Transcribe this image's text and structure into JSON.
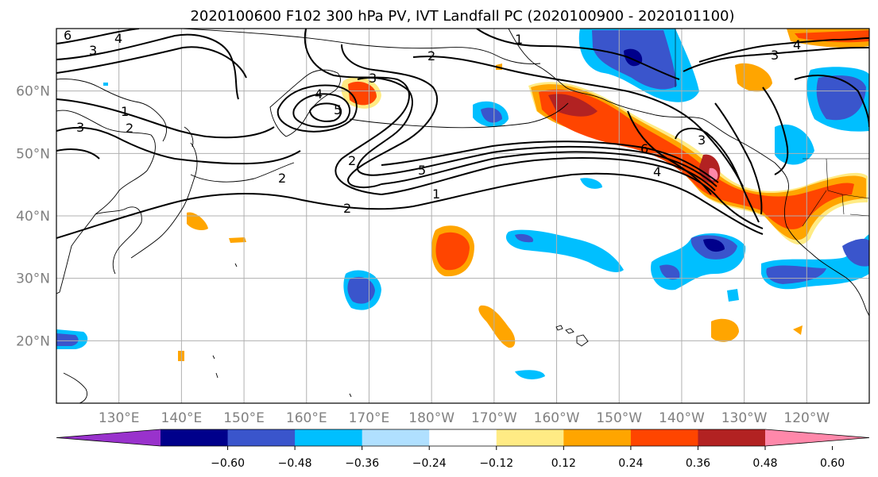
{
  "title": "2020100600 F102 300 hPa PV, IVT Landfall PC (2020100900 - 2020101100)",
  "map": {
    "lon_range": [
      120,
      -110
    ],
    "lat_range": [
      10,
      70
    ],
    "lat_labels": [
      "20°N",
      "30°N",
      "40°N",
      "50°N",
      "60°N"
    ],
    "lon_labels": [
      "130°E",
      "140°E",
      "150°E",
      "160°E",
      "170°E",
      "180°W",
      "170°W",
      "160°W",
      "150°W",
      "140°W",
      "130°W",
      "120°W"
    ],
    "gridlines": true
  },
  "colorbar": {
    "ticks": [
      "−0.60",
      "−0.48",
      "−0.36",
      "−0.24",
      "−0.12",
      "0.12",
      "0.24",
      "0.36",
      "0.48",
      "0.60"
    ],
    "colors": [
      "#9932cc",
      "#00008b",
      "#3a55cc",
      "#00bfff",
      "#b0e0ff",
      "#ffffff",
      "#ffeb84",
      "#ffa500",
      "#ff4500",
      "#b22222",
      "#ff88aa"
    ],
    "extend": "both"
  },
  "contour_labels": {
    "l1": "6",
    "l2": "4",
    "l3": "3",
    "l4": "1",
    "l5": "2",
    "l6": "3",
    "l7": "1",
    "l8": "2",
    "l9": "2",
    "l10": "3",
    "l11": "4",
    "l12": "5",
    "l13": "2",
    "l14": "5",
    "l15": "1",
    "l16": "2",
    "l17": "6",
    "l18": "4",
    "l19": "4",
    "l20": "3",
    "l21": "3"
  },
  "colors": {
    "pos_light": "#ffeb84",
    "pos_mid": "#ffa500",
    "pos_strong": "#ff4500",
    "pos_dark": "#b22222",
    "pos_max": "#ff88aa",
    "neg_light": "#b0e0ff",
    "neg_mid": "#00bfff",
    "neg_strong": "#3a55cc",
    "neg_dark": "#00008b"
  }
}
